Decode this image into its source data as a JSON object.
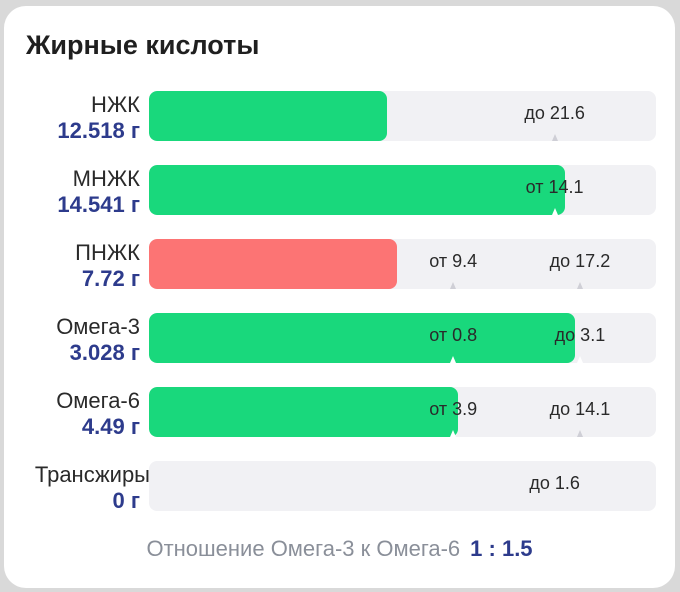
{
  "title": "Жирные кислоты",
  "rows": [
    {
      "label": "НЖК",
      "value": "12.518 г",
      "status": "ok",
      "fill_fraction": 0.47,
      "markers": [
        {
          "text": "до 21.6",
          "at": 0.8
        }
      ]
    },
    {
      "label": "МНЖК",
      "value": "14.541 г",
      "status": "ok",
      "fill_fraction": 0.82,
      "markers": [
        {
          "text": "от 14.1",
          "at": 0.8
        }
      ]
    },
    {
      "label": "ПНЖК",
      "value": "7.72 г",
      "status": "bad",
      "fill_fraction": 0.49,
      "markers": [
        {
          "text": "от 9.4",
          "at": 0.6
        },
        {
          "text": "до 17.2",
          "at": 0.85
        }
      ]
    },
    {
      "label": "Омега-3",
      "value": "3.028 г",
      "status": "ok",
      "fill_fraction": 0.84,
      "markers": [
        {
          "text": "от 0.8",
          "at": 0.6
        },
        {
          "text": "до 3.1",
          "at": 0.85
        }
      ]
    },
    {
      "label": "Омега-6",
      "value": "4.49 г",
      "status": "ok",
      "fill_fraction": 0.61,
      "markers": [
        {
          "text": "от 3.9",
          "at": 0.6
        },
        {
          "text": "до 14.1",
          "at": 0.85
        }
      ]
    },
    {
      "label": "Трансжиры",
      "value": "0 г",
      "status": "ok",
      "fill_fraction": 0,
      "markers": [
        {
          "text": "до 1.6",
          "at": 0.8
        }
      ]
    }
  ],
  "footer": {
    "text": "Отношение Омега-3 к Омега-6",
    "ratio": "1 : 1.5"
  },
  "colors": {
    "ok": "#19d87c",
    "bad": "#fc7474",
    "value": "#2d3b8c"
  }
}
